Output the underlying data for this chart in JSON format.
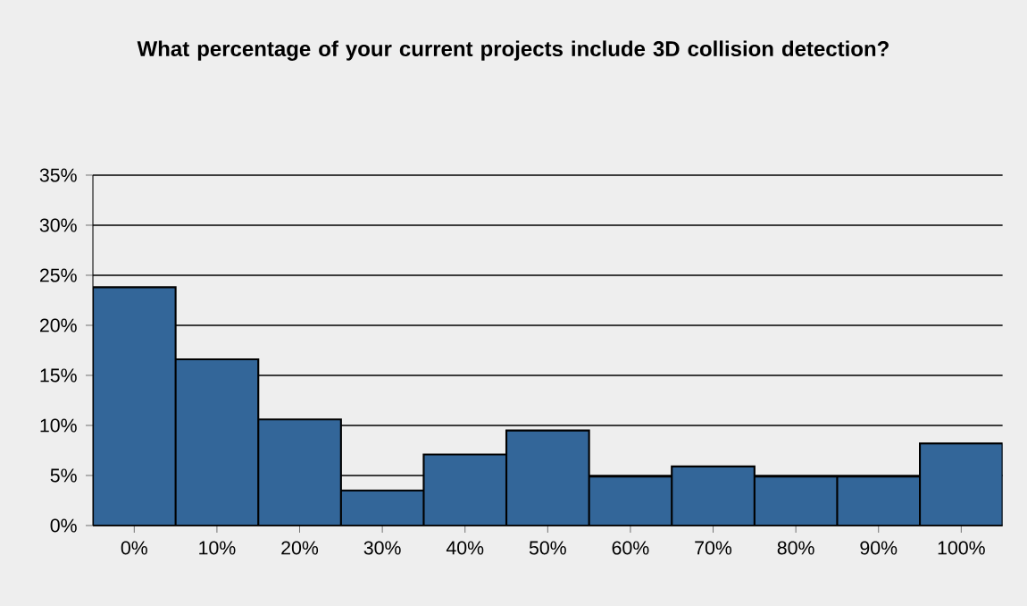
{
  "chart_data": {
    "type": "bar",
    "title": "What percentage of your current projects include 3D collision detection?",
    "categories": [
      "0%",
      "10%",
      "20%",
      "30%",
      "40%",
      "50%",
      "60%",
      "70%",
      "80%",
      "90%",
      "100%"
    ],
    "values": [
      23.8,
      16.6,
      10.6,
      3.5,
      7.1,
      9.5,
      4.9,
      5.9,
      4.9,
      4.9,
      8.2
    ],
    "color": "#336699",
    "ylim": [
      0,
      35
    ],
    "yticks": [
      {
        "value": 0,
        "label": "0%"
      },
      {
        "value": 5,
        "label": "5%"
      },
      {
        "value": 10,
        "label": "10%"
      },
      {
        "value": 15,
        "label": "15%"
      },
      {
        "value": 20,
        "label": "20%"
      },
      {
        "value": 25,
        "label": "25%"
      },
      {
        "value": 30,
        "label": "30%"
      },
      {
        "value": 35,
        "label": "35%"
      }
    ],
    "grid": "y"
  }
}
